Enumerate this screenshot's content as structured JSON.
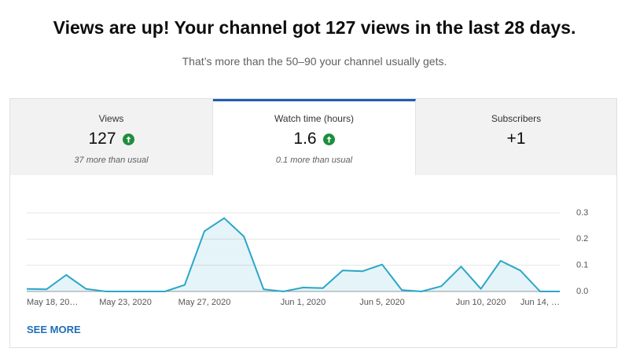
{
  "header": {
    "title": "Views are up! Your channel got 127 views in the last 28 days.",
    "subtitle": "That’s more than the 50–90 your channel usually gets."
  },
  "tabs": [
    {
      "label": "Views",
      "value": "127",
      "note": "37 more than usual"
    },
    {
      "label": "Watch time (hours)",
      "value": "1.6",
      "note": "0.1 more than usual"
    },
    {
      "label": "Subscribers",
      "value": "+1"
    }
  ],
  "chart_data": {
    "type": "area",
    "categories": [
      "May 18, 20…",
      null,
      null,
      null,
      null,
      "May 23, 2020",
      null,
      null,
      null,
      "May 27, 2020",
      null,
      null,
      null,
      null,
      "Jun 1, 2020",
      null,
      null,
      null,
      "Jun 5, 2020",
      null,
      null,
      null,
      null,
      "Jun 10, 2020",
      null,
      null,
      null,
      "Jun 14, …"
    ],
    "values": [
      0.01,
      0.008,
      0.063,
      0.01,
      0,
      0,
      0,
      0,
      0.025,
      0.23,
      0.28,
      0.21,
      0.008,
      0,
      0.015,
      0.013,
      0.08,
      0.077,
      0.103,
      0.005,
      0,
      0.02,
      0.095,
      0.01,
      0.117,
      0.08,
      0,
      0
    ],
    "color": "#2aa6c9",
    "ylim": [
      0,
      0.3
    ],
    "yticks": [
      {
        "value": 0,
        "label": "0.0"
      },
      0.1,
      0.2,
      0.3
    ],
    "grid": true
  },
  "see_more": "SEE MORE"
}
